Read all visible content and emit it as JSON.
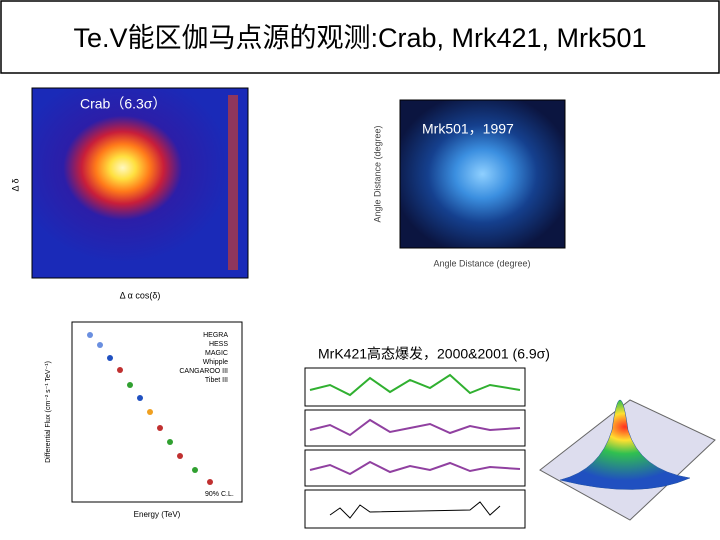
{
  "header": {
    "title": "Te.V能区伽马点源的观测:Crab, Mrk421, Mrk501"
  },
  "panels": [
    {
      "caption": "Crab（6.3σ）",
      "x_label": "Δ α cos(δ)",
      "y_label": "Δ δ"
    },
    {
      "caption": "Mrk501，1997",
      "x_label": "Angle Distance (degree)",
      "y_label": "Angle Distance (degree)"
    },
    {
      "caption": "MrK421高态爆发，2000&2001 (6.9σ)"
    }
  ],
  "spectrum": {
    "x_label": "Energy (TeV)",
    "y_label": "Differential Flux (cm⁻² s⁻¹ TeV⁻¹)",
    "legend": [
      "HEGRA",
      "HESS",
      "MAGIC",
      "Whipple",
      "CANGAROO III",
      "Tibet III"
    ],
    "note": "90% C.L."
  }
}
